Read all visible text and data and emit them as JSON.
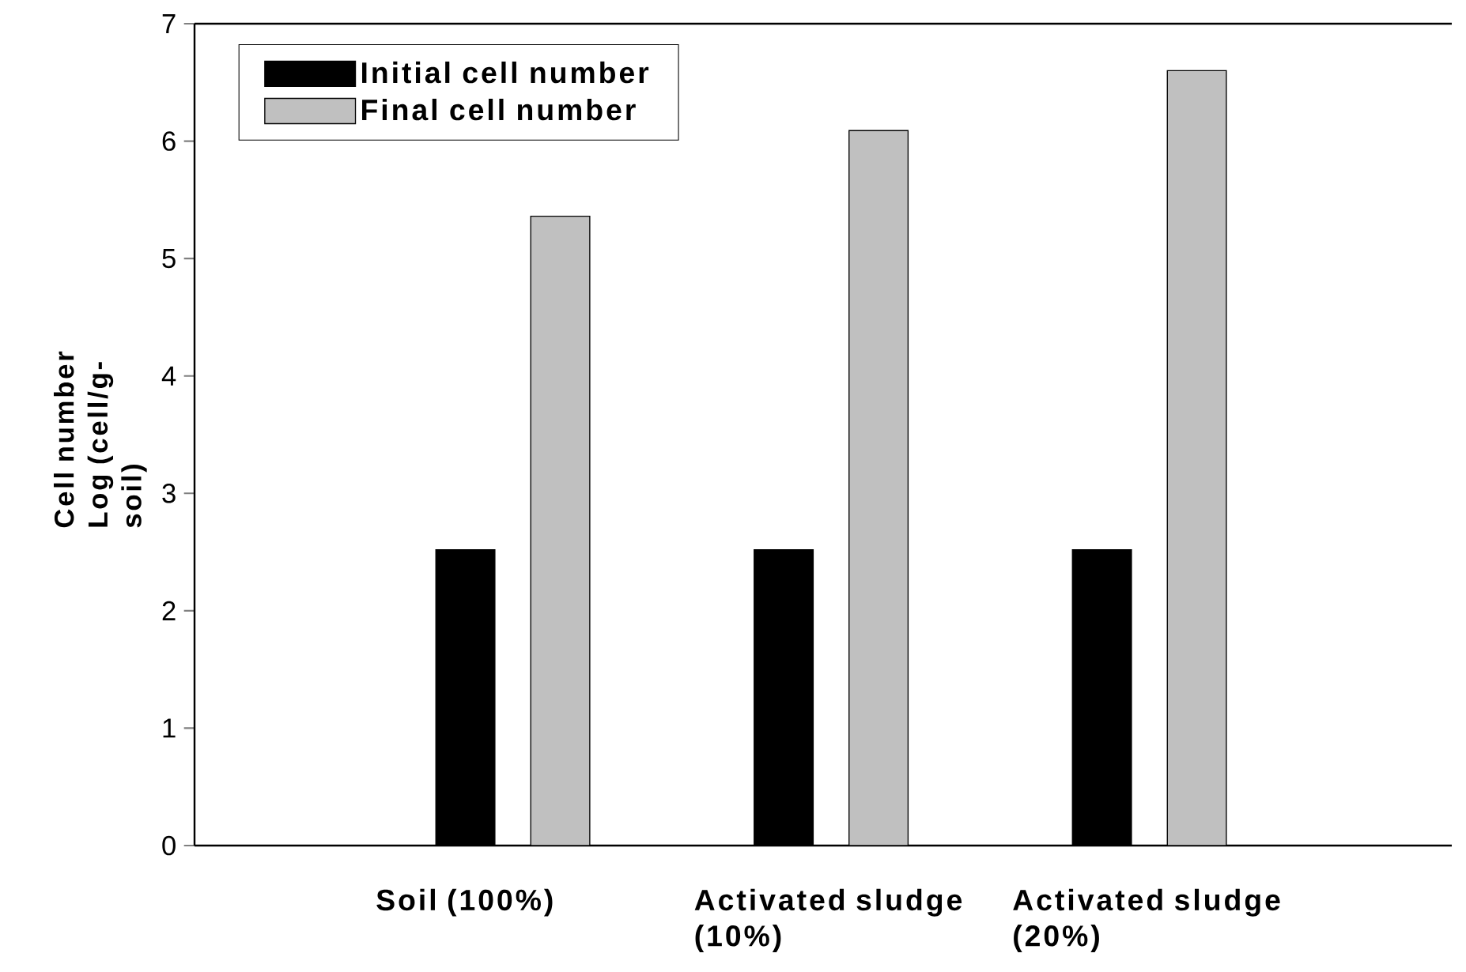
{
  "chart_data": {
    "type": "bar",
    "ylabel": "Cell number Log (cell/g-soil)",
    "categories": [
      "Soil (100%)",
      "Activated sludge (10%)",
      "Activated sludge (20%)"
    ],
    "series": [
      {
        "name": "Initial cell number",
        "color": "#000000",
        "values": [
          2.52,
          2.52,
          2.52
        ]
      },
      {
        "name": "Final cell number",
        "color": "#c0c0c0",
        "values": [
          5.36,
          6.09,
          6.6
        ]
      }
    ],
    "ylim": [
      0,
      7
    ],
    "yticks": [
      0,
      1,
      2,
      3,
      4,
      5,
      6,
      7
    ],
    "legend": "top left"
  }
}
